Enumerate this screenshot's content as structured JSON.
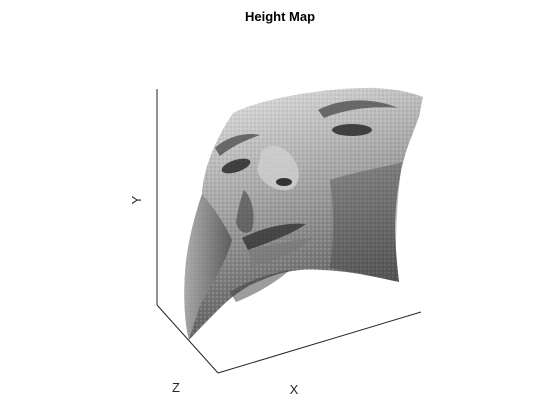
{
  "chart_data": {
    "type": "surface",
    "title": "Height Map",
    "xlabel": "X",
    "ylabel": "Y",
    "zlabel": "Z",
    "colormap": "gray",
    "grid": false,
    "view": "3-D",
    "description_of_surface": "grayscale textured surface (face image) warped by height values",
    "tick_labels": []
  },
  "colors": {
    "axis": "#262626",
    "background": "#ffffff",
    "surface_light": "#e6e6e6",
    "surface_mid": "#8c8c8c",
    "surface_dark": "#1e1e1e"
  }
}
